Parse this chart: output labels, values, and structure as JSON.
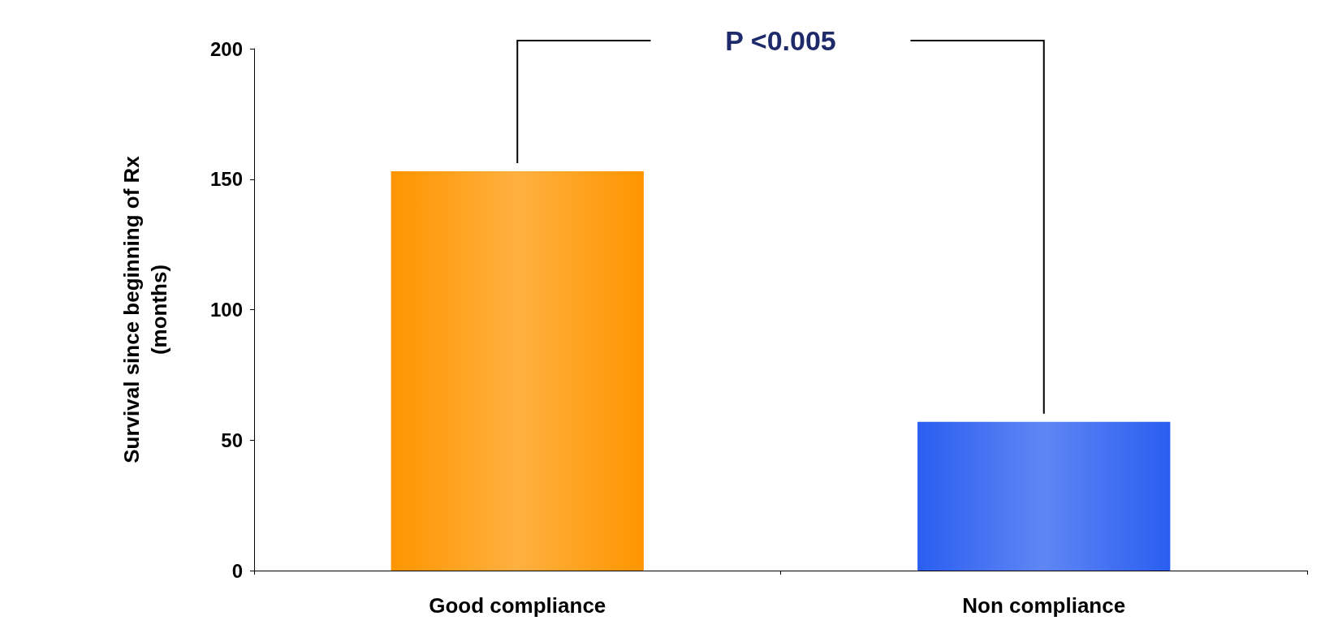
{
  "chart_data": {
    "type": "bar",
    "ylabel": "Survival since beginning of Rx (months)",
    "categories": [
      "Good compliance",
      "Non compliance"
    ],
    "values": [
      153,
      57
    ],
    "colors": [
      "#ff9500",
      "#2a5ef0"
    ],
    "ylim": [
      0,
      200
    ],
    "yticks": [
      0,
      50,
      100,
      150,
      200
    ],
    "grid": false,
    "annotations": [
      "P <0.005"
    ]
  }
}
